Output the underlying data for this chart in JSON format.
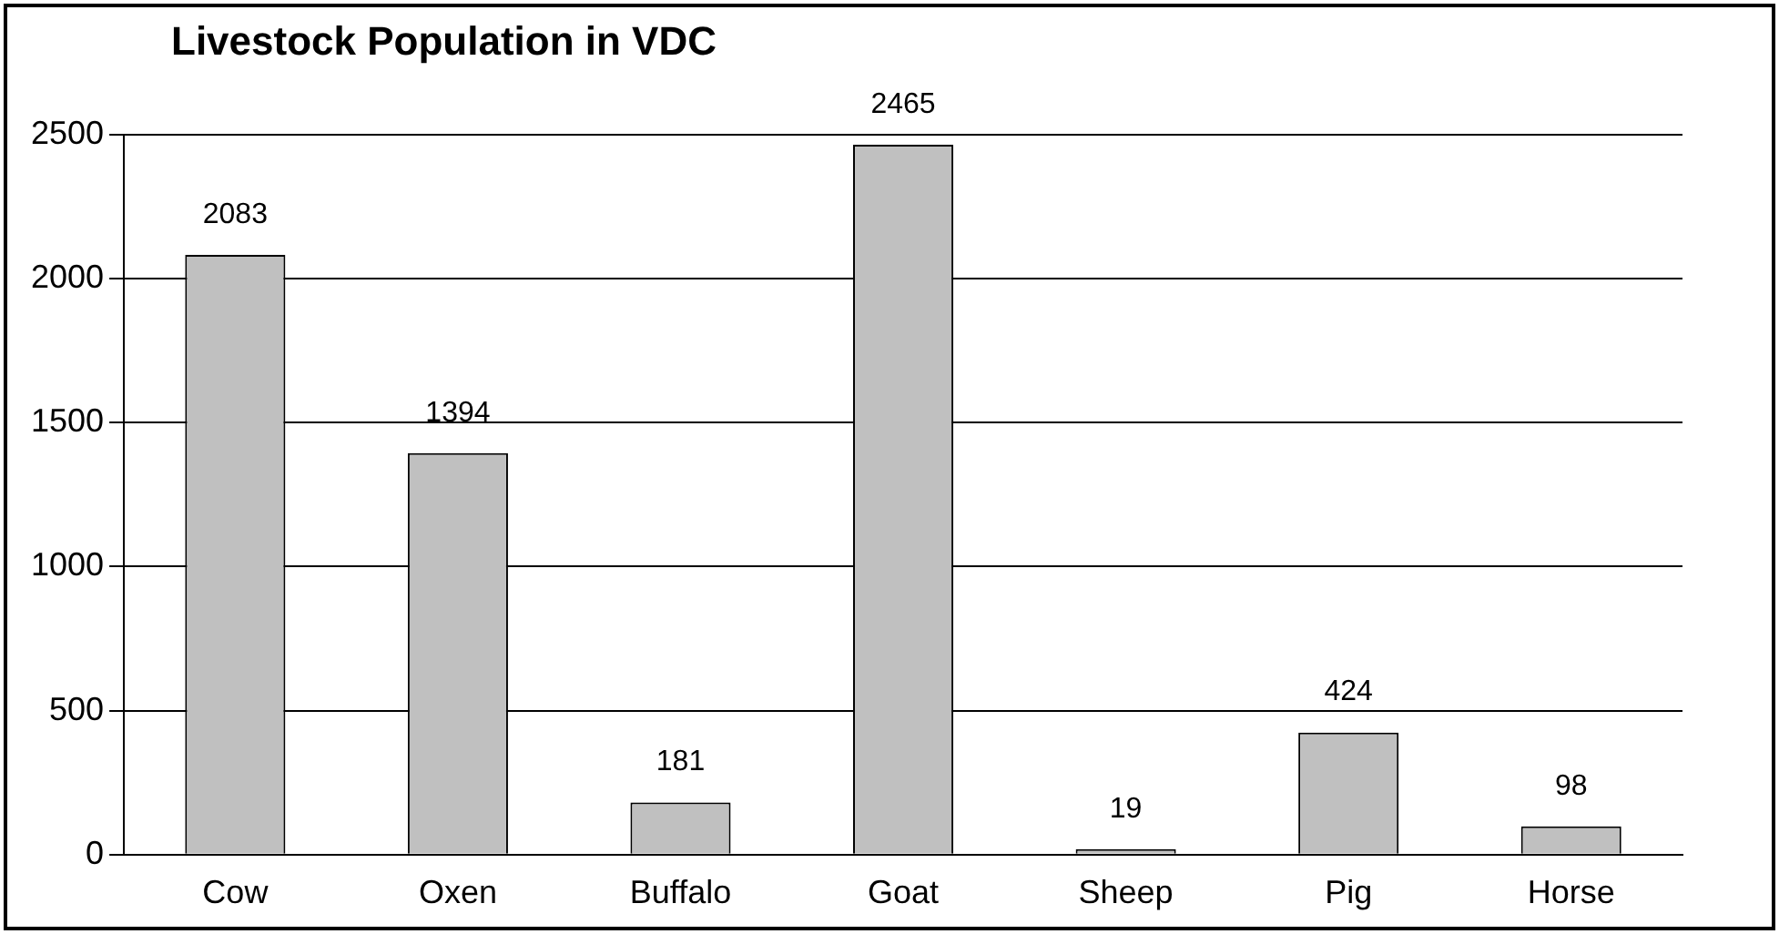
{
  "chart_data": {
    "type": "bar",
    "title": "Livestock Population in VDC",
    "categories": [
      "Cow",
      "Oxen",
      "Buffalo",
      "Goat",
      "Sheep",
      "Pig",
      "Horse"
    ],
    "values": [
      2083,
      1394,
      181,
      2465,
      19,
      424,
      98
    ],
    "color": "#c0c0c0",
    "ylim": [
      0,
      2500
    ],
    "yticks": [
      0,
      500,
      1000,
      1500,
      2000,
      2500
    ],
    "grid": "y",
    "data_labels": true,
    "legend": false
  }
}
